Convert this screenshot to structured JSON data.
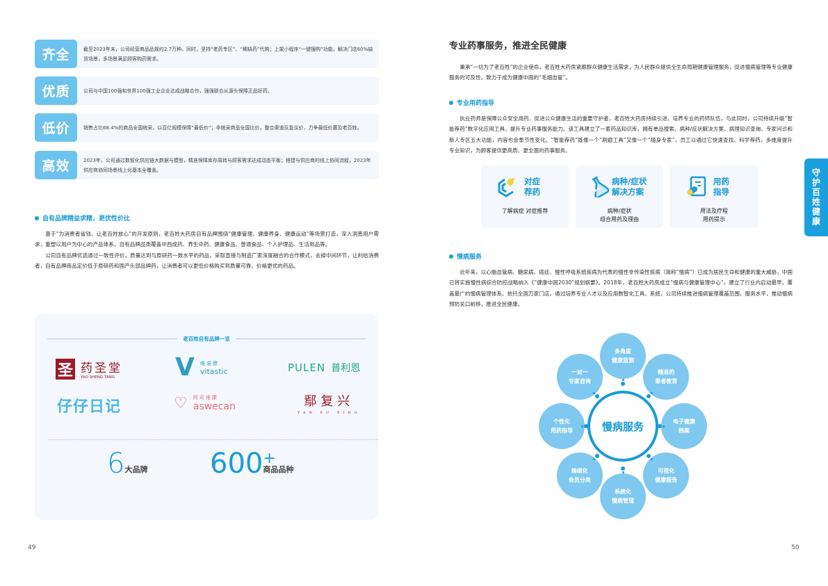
{
  "left": {
    "features": [
      {
        "label": "齐全",
        "text": "截至2023年末，公司经营商品品规约2.7万种。同时，坚持“老药专区”、“稀缺药”代购；上架小程序“一键搜购”功能，解决门店60%缺货场景，多场景满足顾客购药需求。"
      },
      {
        "label": "优质",
        "text": "公司与中国100强和世界100强工业企业达成战略合作，强强联合从源头保障正品好药。"
      },
      {
        "label": "低价",
        "text": "销售占比68.4%的商品全国统采，以百亿规模保障“最低价”；非统采商品全国比价，整合渠道反复议价，力争最低价惠及老百姓。"
      },
      {
        "label": "高效",
        "text": "2023年，公司通过数智化供应链大数据与模型，精准保障库存周转与顾客需求达成动态平衡；搭建与供应商的线上协同流程，2023年供应商协同场景线上化基本全覆盖。"
      }
    ],
    "brand_heading": "自有品牌精益求精，更优性价比",
    "brand_paragraphs": [
      "基于“为消费者省钱、让老百姓放心”的开发原则，老百姓大药房自有品牌围绕“健康管理、健康养身、健康运动”等场景打造，深入洞悉用户需求，重塑以用户为中心的产品体系，自有品牌品类覆盖中西成药、养生中药、健康食品、普通食品、个人护理品、生活用品等。",
      "公司自有品牌优选通过一致性评价，质量达到与原研药一致水平的药品，采取直接与制造厂家深度融合的合作模式，去掉中间环节，让利给消费者，自有品牌商品定价低于原研药和国产头部品牌药，让消费者可以更低价格购买到质量可靠、价格更优的药品。"
    ],
    "panel": {
      "title": "老百姓自有品牌一览",
      "logos": [
        {
          "mark": "圣",
          "cn": "药圣堂",
          "en": "YAO SHENG TANG",
          "color": "#9b1b2a"
        },
        {
          "mark": "V",
          "cn": "维诺健",
          "en": "vitastic",
          "color": "#2f9cc0"
        },
        {
          "cn": "普利恩",
          "en": "PULEN",
          "color": "#20a98a"
        },
        {
          "cn": "仔仔日记",
          "color": "#4cb8e8"
        },
        {
          "cn": "阿司维康",
          "en": "aswecan",
          "color": "#e86a7c"
        },
        {
          "cn": "鄢复兴",
          "en": "YAN FU XING",
          "color": "#9b1b2a"
        }
      ],
      "stats": [
        {
          "value": "6",
          "unit": "大品牌"
        },
        {
          "value": "600",
          "sup": "+",
          "unit": "商品品种"
        }
      ]
    },
    "page_number": "49"
  },
  "right": {
    "title": "专业药事服务，推进全民健康",
    "intro": "秉承“一切为了老百姓”的企业使命，老百姓大药房紧跟群众健康生活需求，为人民群众提供全生命周期健康管理服务，促进慢病管理等专业健康服务的可及性，致力于成为健康中国的“毛细血管”。",
    "guide_heading": "专业用药指导",
    "guide_text": "执业药师是保障公众安全用药、促进公众健康生活的重要守护者，老百姓大药房持续引进、培养专业的药师队伍，与此同时，公司持续升级“智能荐药”数字化应用工具，提升专业药事服务能力。该工具建立了一套药品知识库，拥有单品搜索、病种/症状解决方案、病理知识查询、专家问诊和新人专区五大功能，内容也会季节性变化。“智能荐药”既像一个“刷题工具”又像一个“随身专家”，员工以通过它快速查找、科学荐药，多维度提升专业知识，为顾客提供更高质、更全面的药事服务。",
    "services": [
      {
        "icon": "recommend-icon",
        "title1": "对症",
        "title2": "荐药",
        "desc1": "了解病症  对症推荐",
        "desc2": ""
      },
      {
        "icon": "flask-icon",
        "title1": "病种/症状",
        "title2": "解决方案",
        "desc1": "病种/症状",
        "desc2": "组合用药及理由"
      },
      {
        "icon": "pill-document-icon",
        "title1": "用药",
        "title2": "指导",
        "desc1": "用法及疗程",
        "desc2": "用药提示"
      }
    ],
    "chronic_heading": "慢病服务",
    "chronic_text": "近年来，以心脑血管病、糖尿病、癌症、慢性呼吸系统疾病为代表的慢性非传染性疾病（简称“慢病”）已成为居民生命和健康的重大威胁，中国已将实施慢性病综合防控战略纳入《“健康中国2030”规划纲要》。2018年，老百姓大药房成立“慢病与健康管理中心”，建立了行业内启动最早、覆盖最广的慢病管理体系。依托全国万家门店，通过培养专业人才以及应用数智化工具、系统，公司持续推进慢病管理覆盖范围、服务水平，推动慢病预防关口前移，推进全民健康。",
    "diagram": {
      "center": "慢病服务",
      "nodes": [
        {
          "l1": "多角度",
          "l2": "健康监测"
        },
        {
          "l1": "精准的",
          "l2": "患者教育"
        },
        {
          "l1": "电子健康",
          "l2": "档案"
        },
        {
          "l1": "可视化",
          "l2": "健康报告"
        },
        {
          "l1": "系统化",
          "l2": "慢病管理"
        },
        {
          "l1": "精细化",
          "l2": "会员分类"
        },
        {
          "l1": "个性化",
          "l2": "用药指导"
        },
        {
          "l1": "一对一",
          "l2": "专家咨询"
        }
      ]
    },
    "side_tab": "守护百姓健康",
    "page_number": "50"
  },
  "colors": {
    "accent": "#1a9bd7",
    "label_bg": "#6cc3ee",
    "node_bg": "#7fc8ef",
    "card_bg": "#f4f7fb"
  }
}
